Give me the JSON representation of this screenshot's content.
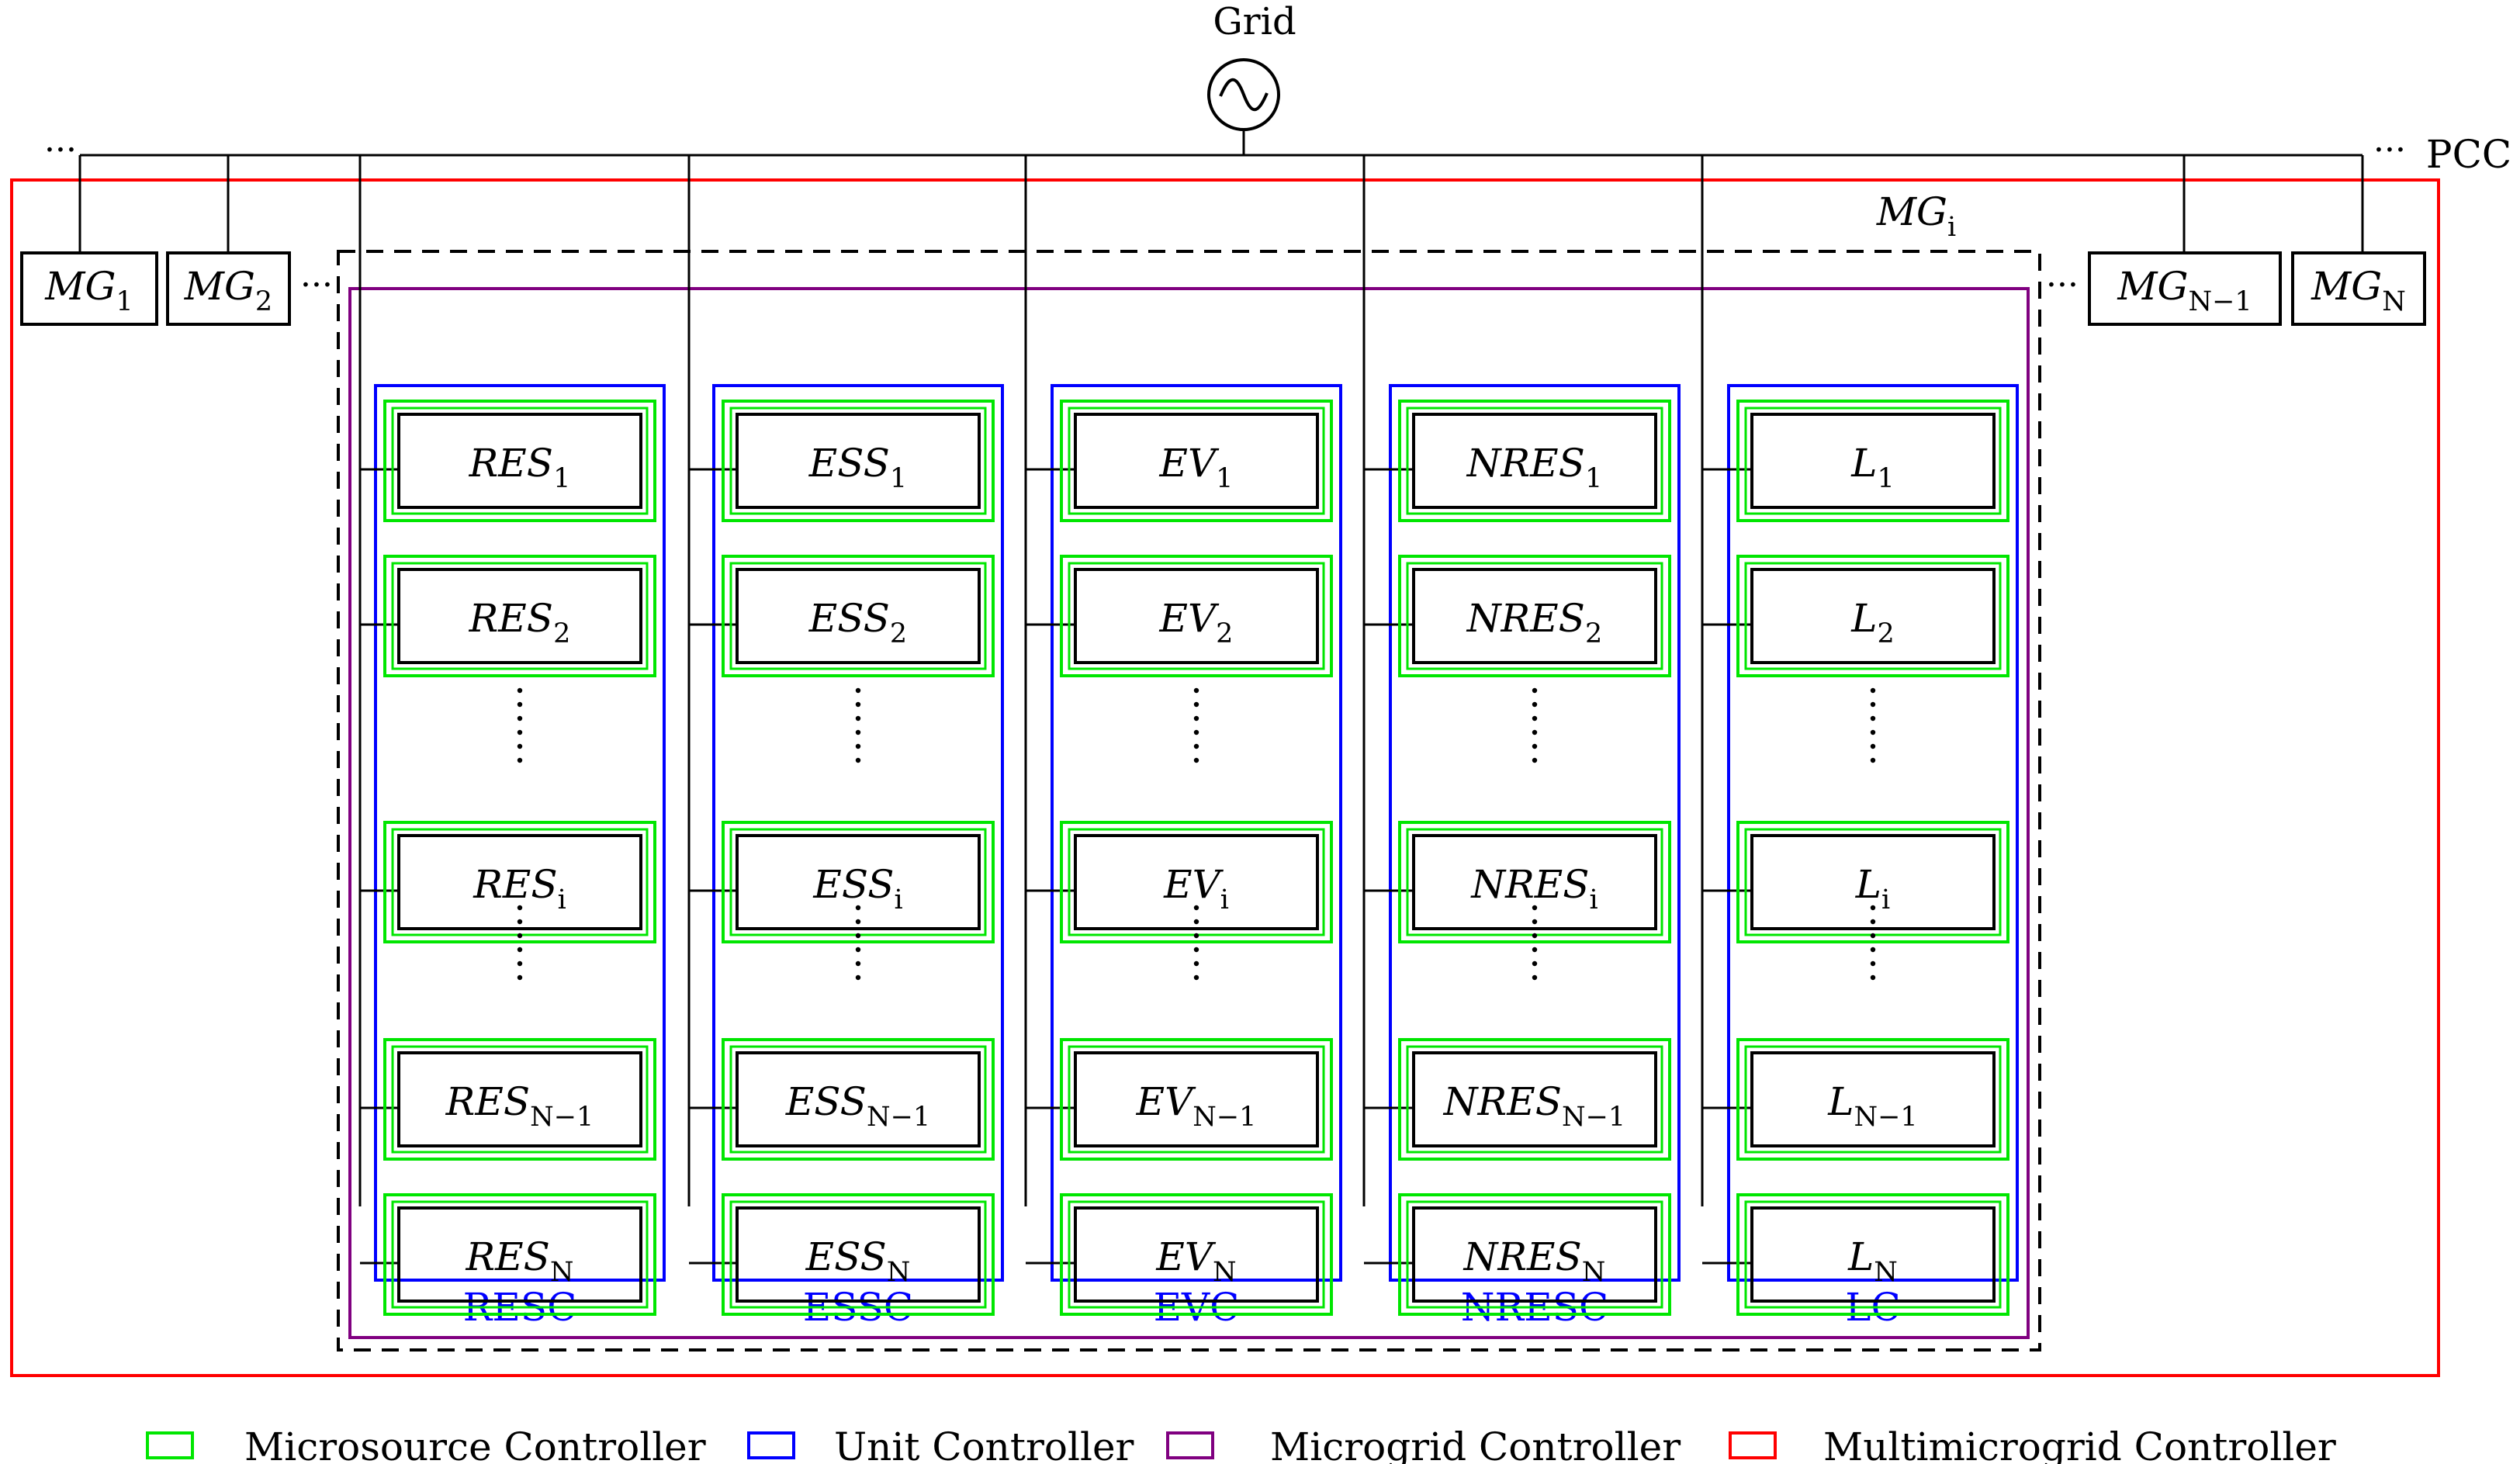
{
  "grid": {
    "label": "Grid",
    "icon": "ac-source-icon"
  },
  "pcc_label": "PCC",
  "ellipsis": "···",
  "outer_microgrids": [
    {
      "main": "MG",
      "sub": "1"
    },
    {
      "main": "MG",
      "sub": "2"
    },
    {
      "main": "MG",
      "sub": "N−1"
    },
    {
      "main": "MG",
      "sub": "N"
    }
  ],
  "microgrid_i": {
    "main": "MG",
    "sub": "i"
  },
  "columns": [
    {
      "controller": "RESC",
      "prefix": "RES",
      "units": [
        {
          "sub": "1"
        },
        {
          "sub": "2"
        },
        {
          "sub": "i"
        },
        {
          "sub": "N−1"
        },
        {
          "sub": "N"
        }
      ]
    },
    {
      "controller": "ESSC",
      "prefix": "ESS",
      "units": [
        {
          "sub": "1"
        },
        {
          "sub": "2"
        },
        {
          "sub": "i"
        },
        {
          "sub": "N−1"
        },
        {
          "sub": "N"
        }
      ]
    },
    {
      "controller": "EVC",
      "prefix": "EV",
      "units": [
        {
          "sub": "1"
        },
        {
          "sub": "2"
        },
        {
          "sub": "i"
        },
        {
          "sub": "N−1"
        },
        {
          "sub": "N"
        }
      ]
    },
    {
      "controller": "NRESC",
      "prefix": "NRES",
      "units": [
        {
          "sub": "1"
        },
        {
          "sub": "2"
        },
        {
          "sub": "i"
        },
        {
          "sub": "N−1"
        },
        {
          "sub": "N"
        }
      ]
    },
    {
      "controller": "LC",
      "prefix": "L",
      "units": [
        {
          "sub": "1"
        },
        {
          "sub": "2"
        },
        {
          "sub": "i"
        },
        {
          "sub": "N−1"
        },
        {
          "sub": "N"
        }
      ]
    }
  ],
  "legend": [
    {
      "label": "Microsource Controller",
      "color": "#00e600"
    },
    {
      "label": "Unit Controller",
      "color": "#0000ff"
    },
    {
      "label": "Microgrid Controller",
      "color": "#800080"
    },
    {
      "label": "Multimicrogrid Controller",
      "color": "#ff0000"
    }
  ],
  "colors": {
    "microsource": "#00e600",
    "unit": "#0000ff",
    "microgrid": "#800080",
    "multimicrogrid": "#ff0000",
    "line": "#000000"
  }
}
